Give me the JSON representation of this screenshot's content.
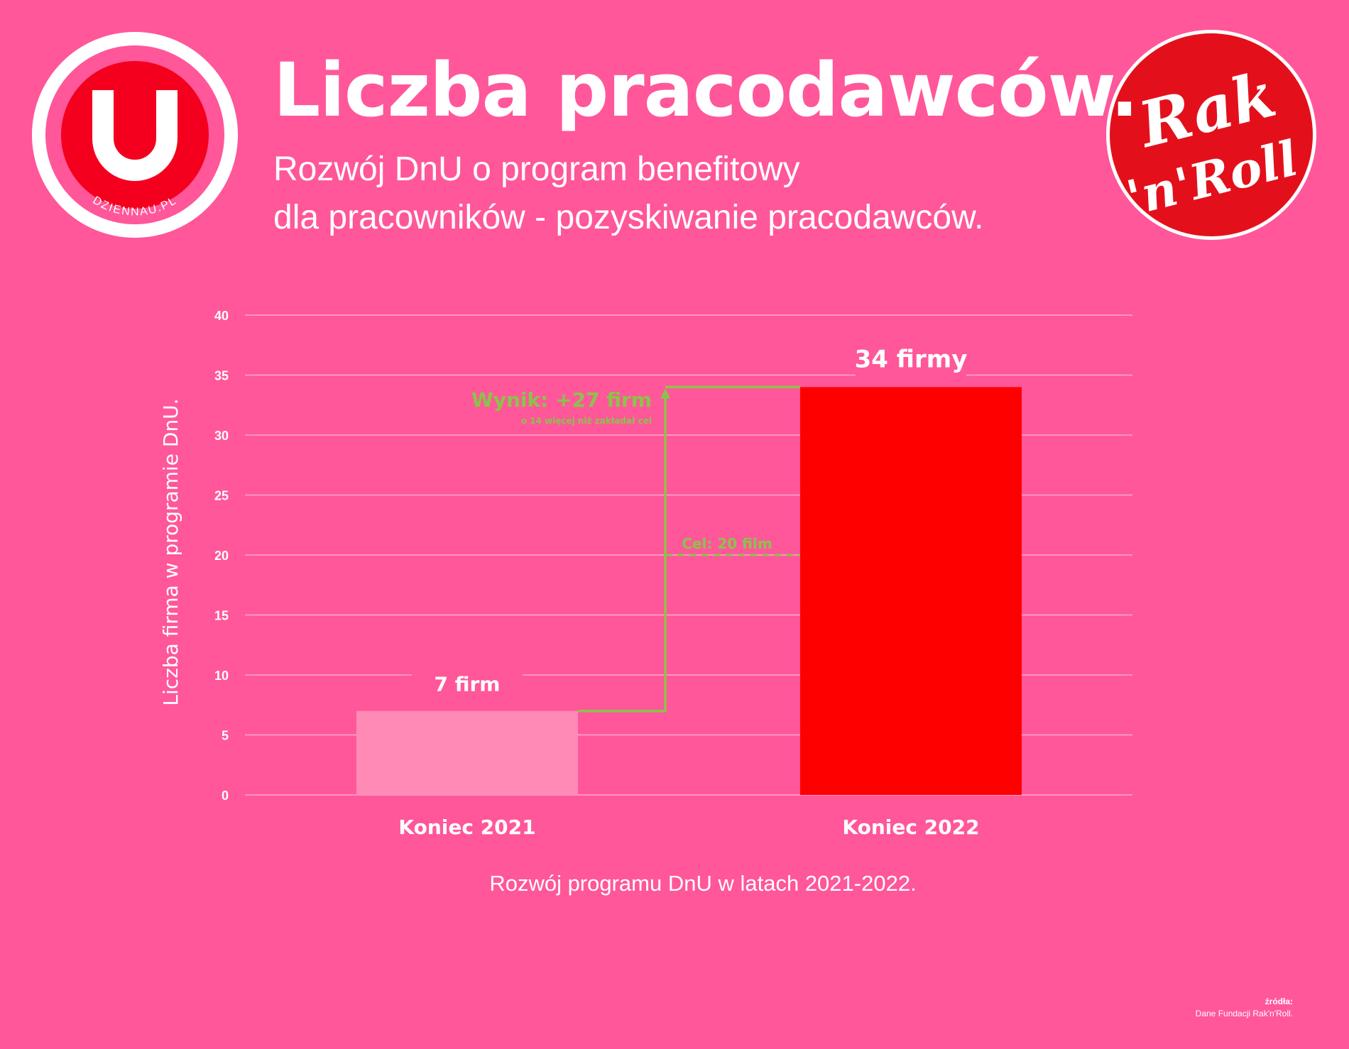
{
  "header": {
    "title": "Liczba pracodawców.",
    "subtitle_line1": "Rozwój DnU o program benefitowy",
    "subtitle_line2": "dla pracowników - pozyskiwanie pracodawców."
  },
  "logos": {
    "left": {
      "letter": "U",
      "ring_text": "DZIENNAU.PL"
    },
    "right": {
      "line1": "Rak",
      "line2": "'n'Roll"
    }
  },
  "chart_data": {
    "type": "bar",
    "categories": [
      "Koniec 2021",
      "Koniec 2022"
    ],
    "values": [
      7,
      34
    ],
    "value_labels": [
      "7  firm",
      "34  firmy"
    ],
    "bar_colors": [
      "#FF8AB6",
      "#FF0000"
    ],
    "ylabel": "Liczba firma w programie DnU.",
    "xlabel": "Rozwój programu DnU w latach 2021-2022.",
    "ylim": [
      0,
      40
    ],
    "yticks": [
      0,
      5,
      10,
      15,
      20,
      25,
      30,
      35,
      40
    ],
    "grid": true,
    "annotations": {
      "result_label": "Wynik: +27 firm",
      "result_sublabel": "o 14 więcej niż zakładał cel",
      "goal_label": "Cel: 20 film",
      "goal_value": 20,
      "color": "#8BC34A"
    }
  },
  "source": {
    "heading": "źródła:",
    "text": "Dane Fundacji Rak'n'Roll."
  },
  "colors": {
    "background": "#FF5799",
    "accent_red": "#FF0000",
    "light_bar": "#FF8AB6",
    "annotation_green": "#8BC34A"
  }
}
